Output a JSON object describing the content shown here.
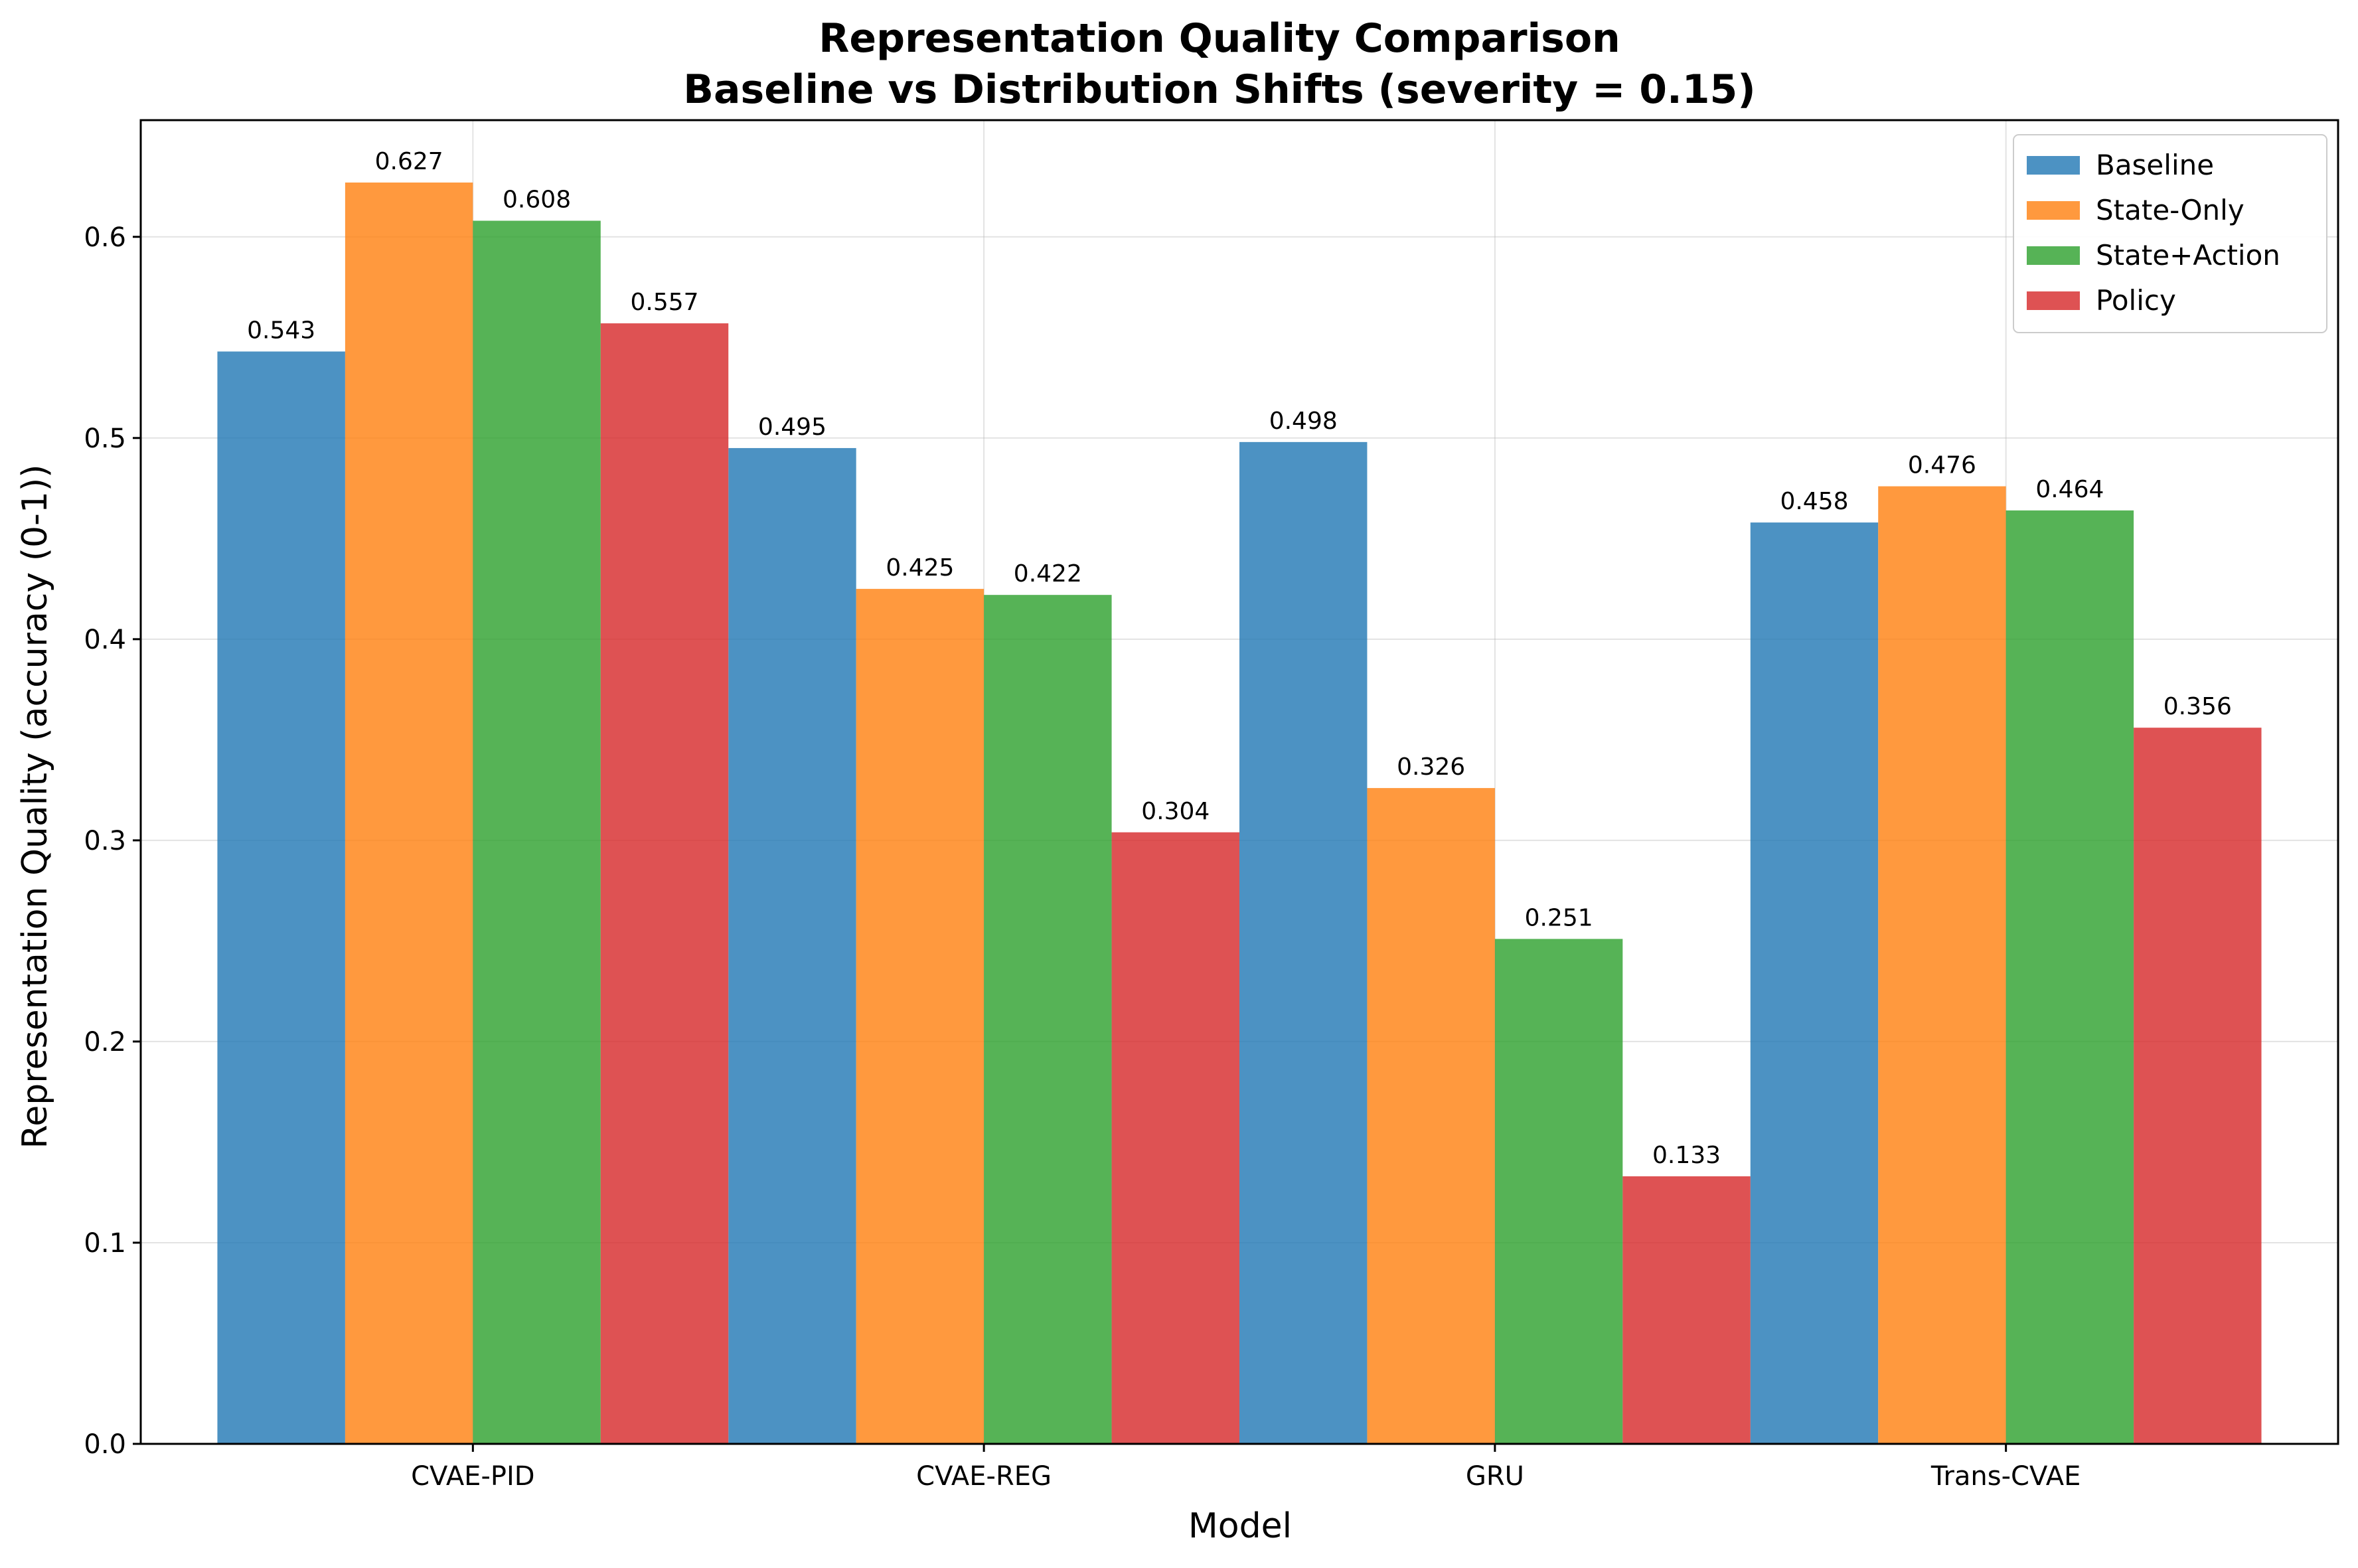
{
  "chart_data": {
    "type": "bar",
    "title_line1": "Representation Quality Comparison",
    "title_line2": "Baseline vs Distribution Shifts (severity = 0.15)",
    "xlabel": "Model",
    "ylabel": "Representation Quality (accuracy (0-1))",
    "categories": [
      "CVAE-PID",
      "CVAE-REG",
      "GRU",
      "Trans-CVAE"
    ],
    "series": [
      {
        "name": "Baseline",
        "color": "#1f77b4",
        "values": [
          0.543,
          0.495,
          0.498,
          0.458
        ],
        "labels": [
          "0.543",
          "0.495",
          "0.498",
          "0.458"
        ]
      },
      {
        "name": "State-Only",
        "color": "#ff7f0e",
        "values": [
          0.627,
          0.425,
          0.326,
          0.476
        ],
        "labels": [
          "0.627",
          "0.425",
          "0.326",
          "0.476"
        ]
      },
      {
        "name": "State+Action",
        "color": "#2ca02c",
        "values": [
          0.608,
          0.422,
          0.251,
          0.464
        ],
        "labels": [
          "0.608",
          "0.422",
          "0.251",
          "0.464"
        ]
      },
      {
        "name": "Policy",
        "color": "#d62728",
        "values": [
          0.557,
          0.304,
          0.133,
          0.356
        ],
        "labels": [
          "0.557",
          "0.304",
          "0.133",
          "0.356"
        ]
      }
    ],
    "ylim": [
      0,
      0.658
    ],
    "yticks": [
      0.0,
      0.1,
      0.2,
      0.3,
      0.4,
      0.5,
      0.6
    ],
    "ytick_labels": [
      "0.0",
      "0.1",
      "0.2",
      "0.3",
      "0.4",
      "0.5",
      "0.6"
    ],
    "grid": true,
    "legend_position": "top-right"
  }
}
